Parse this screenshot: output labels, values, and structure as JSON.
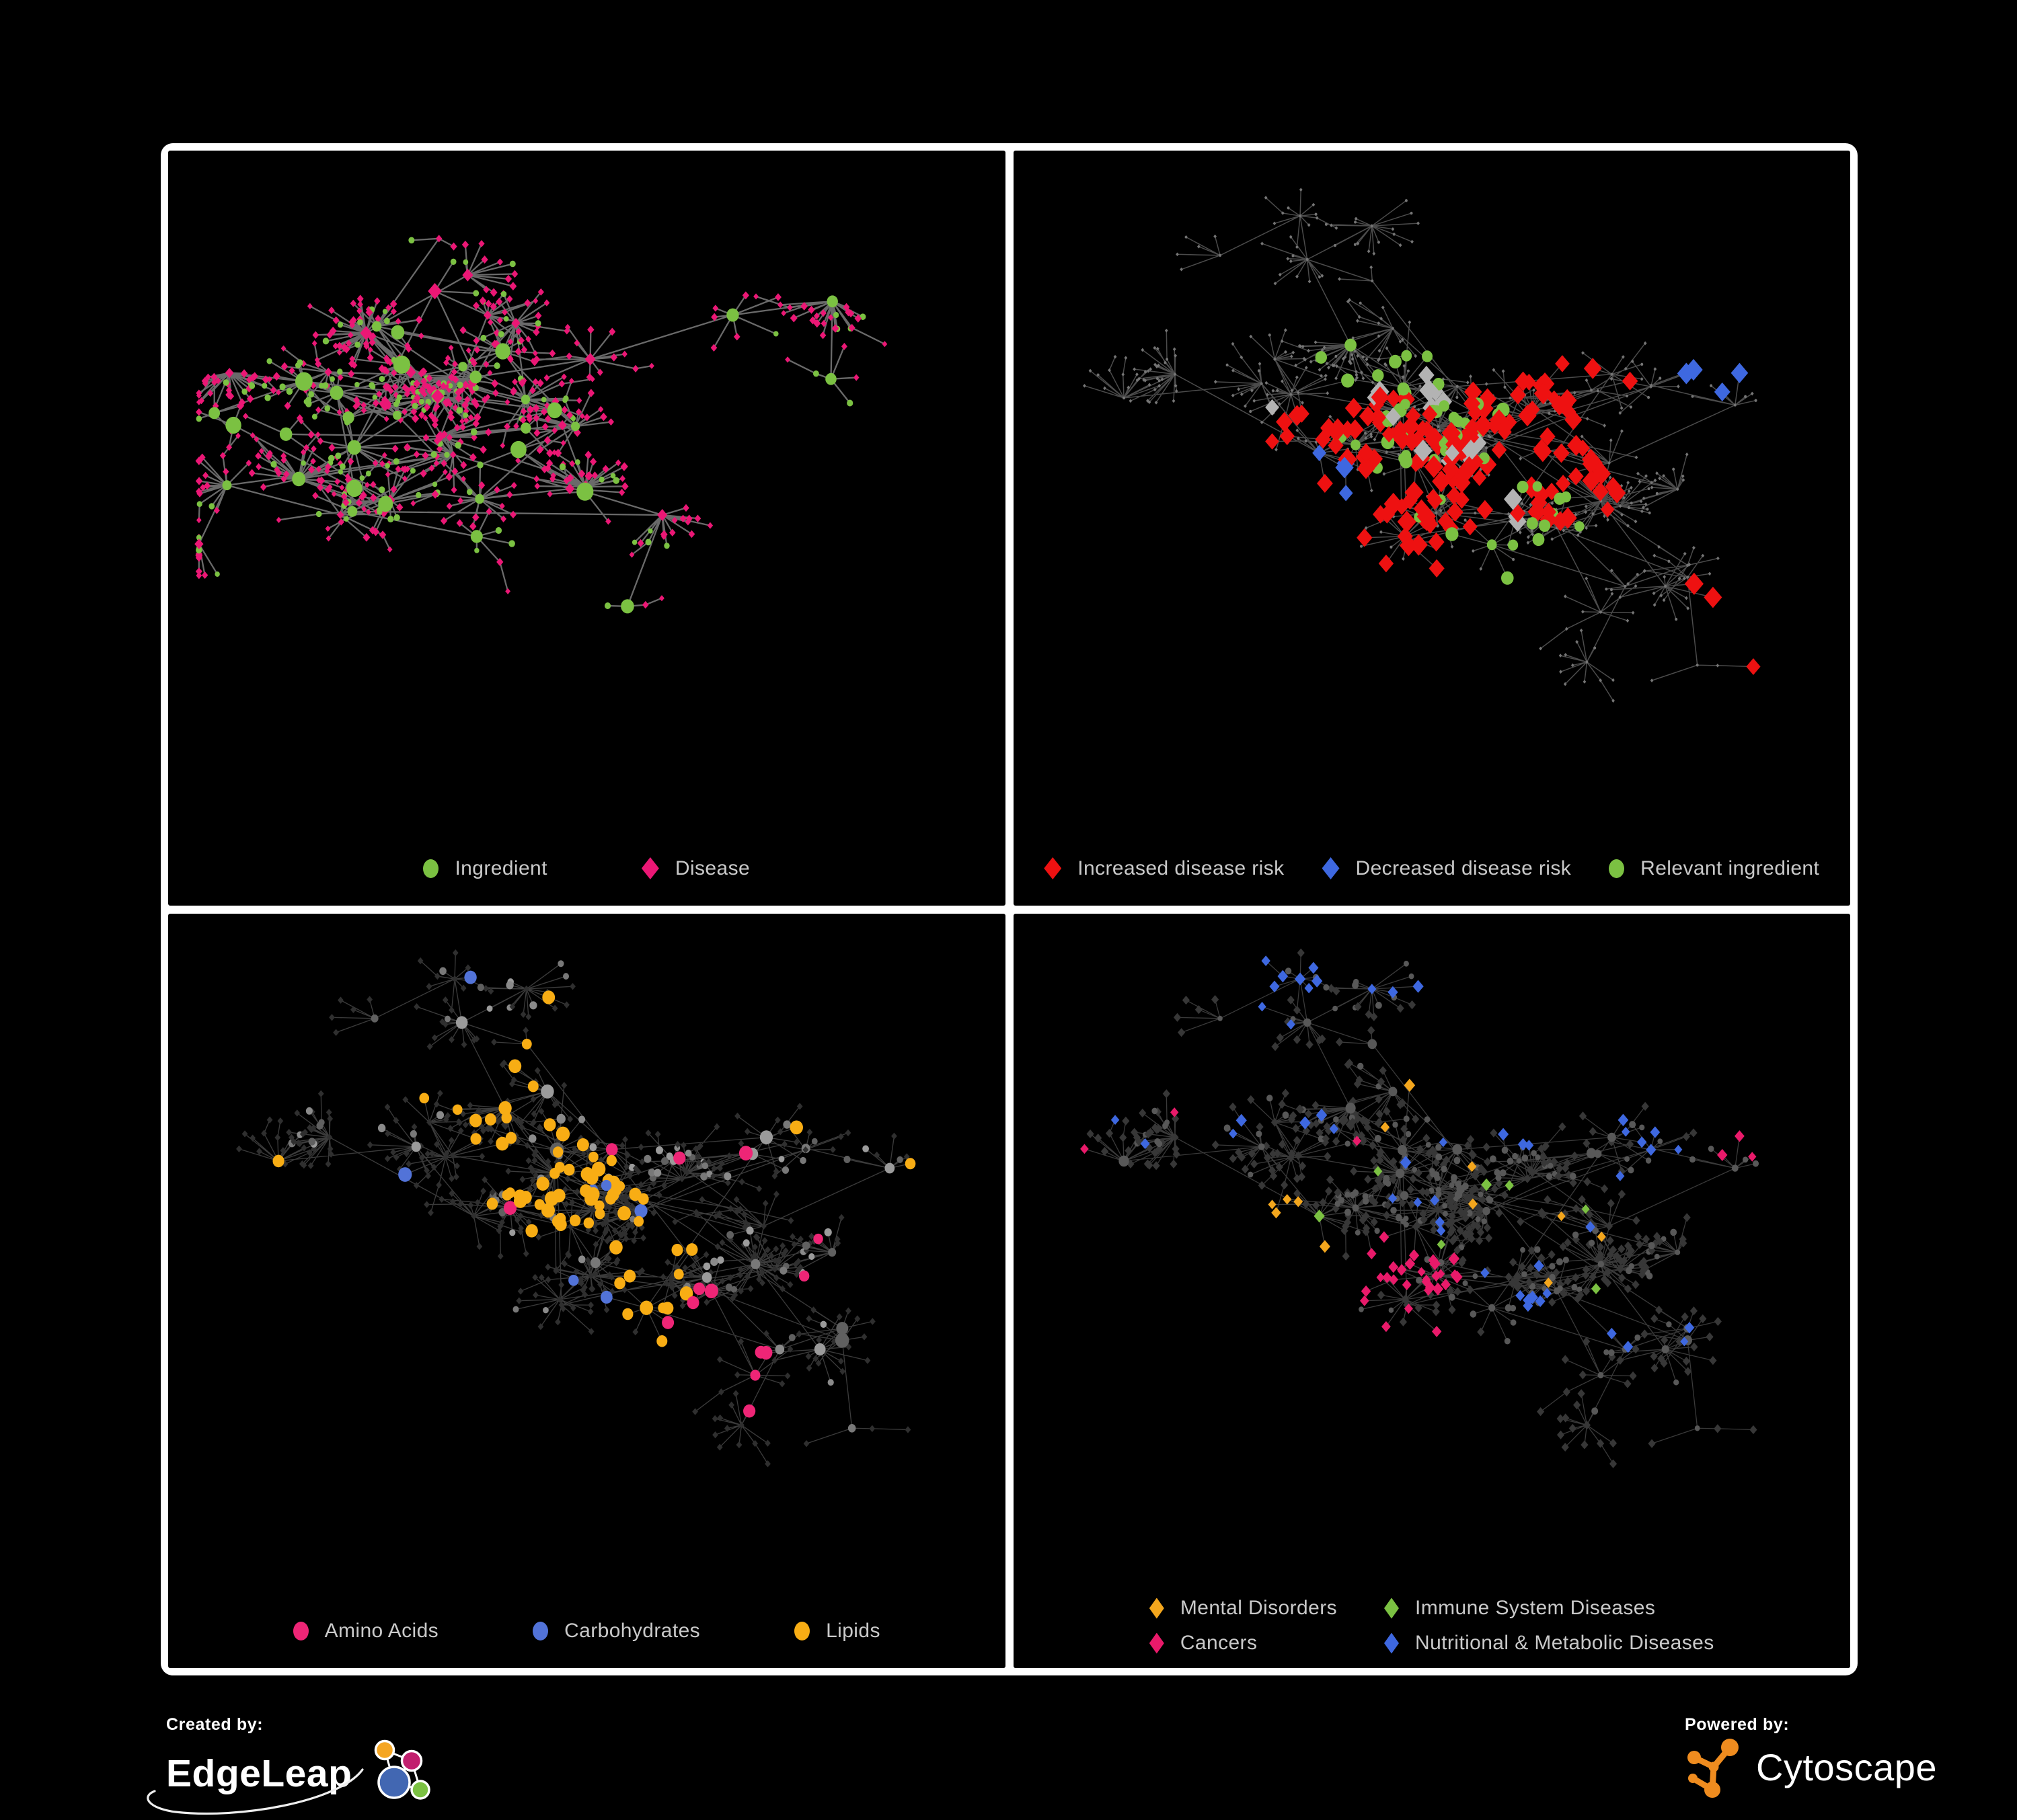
{
  "colors": {
    "background": "#000000",
    "frame": "#ffffff",
    "legend_text": "#c9c9c9",
    "ingredient_green": "#7bc142",
    "disease_pink": "#eb1775",
    "risk_red": "#ee1111",
    "risk_blue": "#3e68e0",
    "neutral_silver": "#b3b3b3",
    "amino_pink": "#ee2576",
    "carb_blue": "#5273d8",
    "lipid_orange": "#f8ad14",
    "mental_orange": "#f3a61d",
    "cancer_pink": "#e91a6a",
    "immune_green": "#7bc142",
    "nutri_blue": "#3e68e0",
    "edgeleap_orange": "#f5a623",
    "edgeleap_magenta": "#c21f6e",
    "edgeleap_blue": "#4267b2",
    "edgeleap_green": "#7bc142",
    "cytoscape_orange": "#ef8c1f"
  },
  "footer": {
    "created_by_label": "Created by:",
    "created_by_name": "EdgeLeap",
    "powered_by_label": "Powered by:",
    "powered_by_name": "Cytoscape"
  },
  "network": {
    "panel1_seed": 11,
    "panel1_hubs": 54,
    "shared_seed": 47,
    "shared_hubs": 58,
    "note_node_kinds": [
      "ingredient (circle)",
      "disease (diamond)"
    ]
  },
  "panels": [
    {
      "key": "ingredient-disease",
      "legend": [
        {
          "label": "Ingredient",
          "shape": "circle",
          "color": "#7bc142"
        },
        {
          "label": "Disease",
          "shape": "diamond",
          "color": "#eb1775"
        }
      ],
      "render": {
        "graph": 0,
        "hl_seed": 1,
        "edge": {
          "color": "#767676",
          "width": 2.3,
          "opacity": 0.9
        },
        "base": {
          "i": {
            "shape": "circle",
            "color": "#7bc142",
            "size": "auto",
            "hub_scale": 1.0,
            "leaf_scale": 1.0
          },
          "d": {
            "shape": "diamond",
            "color": "#eb1775",
            "size": "auto",
            "hub_scale": 0.8,
            "leaf_scale": 1.15
          }
        }
      }
    },
    {
      "key": "disease-risk",
      "legend": [
        {
          "label": "Increased disease risk",
          "shape": "diamond",
          "color": "#ee1111"
        },
        {
          "label": "Decreased disease risk",
          "shape": "diamond",
          "color": "#3e68e0"
        },
        {
          "label": "Relevant ingredient",
          "shape": "circle",
          "color": "#7bc142"
        }
      ],
      "render": {
        "graph": 1,
        "hl_seed": 101,
        "edge": {
          "color": "#585858",
          "width": 1.5,
          "opacity": 0.85
        },
        "base": {
          "i": {
            "shape": "circle",
            "color": "#757575",
            "size": 2.0
          },
          "d": {
            "shape": "diamond",
            "color": "#757575",
            "size": 2.4
          }
        },
        "highlights": [
          {
            "target": "d",
            "shape": "diamond",
            "color": "#ee1111",
            "size": 12,
            "radius": 0.075,
            "p": 0.55,
            "foci": [
              [
                0.45,
                0.44
              ],
              [
                0.54,
                0.5
              ],
              [
                0.61,
                0.41
              ],
              [
                0.49,
                0.6
              ],
              [
                0.37,
                0.46
              ],
              [
                0.66,
                0.52
              ],
              [
                0.92,
                0.82
              ],
              [
                0.85,
                0.75
              ],
              [
                0.7,
                0.3
              ]
            ]
          },
          {
            "target": "d",
            "shape": "diamond",
            "color": "#3e68e0",
            "size": 12,
            "radius": 0.06,
            "p": 0.55,
            "foci": [
              [
                0.36,
                0.5
              ],
              [
                0.33,
                0.57
              ],
              [
                0.84,
                0.34
              ]
            ]
          },
          {
            "target": "d",
            "shape": "diamond",
            "color": "#b3b3b3",
            "size": 12,
            "radius": 0.045,
            "p": 0.4,
            "foci": [
              [
                0.3,
                0.44
              ],
              [
                0.52,
                0.44
              ],
              [
                0.57,
                0.56
              ],
              [
                0.33,
                0.7
              ],
              [
                0.47,
                0.38
              ]
            ]
          },
          {
            "target": "i",
            "shape": "circle",
            "color": "#7bc142",
            "size": 8.5,
            "radius": 0.1,
            "p": 0.4,
            "foci": [
              [
                0.4,
                0.46
              ],
              [
                0.5,
                0.5
              ],
              [
                0.58,
                0.48
              ],
              [
                0.44,
                0.36
              ],
              [
                0.3,
                0.52
              ],
              [
                0.24,
                0.46
              ],
              [
                0.62,
                0.6
              ]
            ]
          }
        ]
      }
    },
    {
      "key": "nutrient-classes",
      "legend": [
        {
          "label": "Amino Acids",
          "shape": "circle",
          "color": "#ee2576"
        },
        {
          "label": "Carbohydrates",
          "shape": "circle",
          "color": "#5273d8"
        },
        {
          "label": "Lipids",
          "shape": "circle",
          "color": "#f8ad14"
        }
      ],
      "render": {
        "graph": 1,
        "hl_seed": 103,
        "edge": {
          "color": "#4a4a4a",
          "width": 1.35,
          "opacity": 0.8
        },
        "base": {
          "i": {
            "shape": "circle",
            "color": "#8d8d8d",
            "color_var": [
              "#9b9b9b",
              "#8a8a8a",
              "#787878",
              "#606060"
            ],
            "size": "auto",
            "hub_scale": 0.9,
            "leaf_scale": 1.2
          },
          "d": {
            "shape": "diamond",
            "color": "#2f2f2f",
            "size": 4.4
          }
        },
        "highlights": [
          {
            "target": "i",
            "shape": "circle",
            "color": "#f8ad14",
            "size": 8.5,
            "radius": 0.07,
            "p": 0.75,
            "foci": [
              [
                0.49,
                0.43
              ],
              [
                0.53,
                0.47
              ],
              [
                0.44,
                0.38
              ],
              [
                0.57,
                0.63
              ],
              [
                0.42,
                0.2
              ],
              [
                0.5,
                0.15
              ],
              [
                0.35,
                0.28
              ],
              [
                0.6,
                0.5
              ]
            ]
          },
          {
            "target": "i",
            "shape": "circle",
            "color": "#5273d8",
            "size": 8.5,
            "radius": 0.05,
            "p": 0.5,
            "foci": [
              [
                0.53,
                0.45
              ],
              [
                0.56,
                0.5
              ],
              [
                0.24,
                0.06
              ]
            ]
          },
          {
            "target": "i",
            "shape": "circle",
            "color": "#ee2576",
            "size": 8.5,
            "radius": 0.06,
            "p": 0.5,
            "foci": [
              [
                0.68,
                0.72
              ],
              [
                0.72,
                0.8
              ],
              [
                0.62,
                0.6
              ]
            ]
          },
          {
            "target": "i",
            "shape": "circle",
            "color": "#f8ad14",
            "size": 8.5,
            "radius": 0.9,
            "p": 0.03,
            "foci": [
              [
                0.5,
                0.5
              ]
            ]
          },
          {
            "target": "i",
            "shape": "circle",
            "color": "#5273d8",
            "size": 8.5,
            "radius": 0.9,
            "p": 0.015,
            "foci": [
              [
                0.5,
                0.5
              ]
            ]
          },
          {
            "target": "i",
            "shape": "circle",
            "color": "#ee2576",
            "size": 8.5,
            "radius": 0.9,
            "p": 0.06,
            "foci": [
              [
                0.5,
                0.5
              ]
            ]
          }
        ]
      }
    },
    {
      "key": "disease-classes",
      "legend": [
        {
          "label": "Mental Disorders",
          "shape": "diamond",
          "color": "#f3a61d"
        },
        {
          "label": "Immune System Diseases",
          "shape": "diamond",
          "color": "#7bc142"
        },
        {
          "label": "Cancers",
          "shape": "diamond",
          "color": "#e91a6a"
        },
        {
          "label": "Nutritional & Metabolic Diseases",
          "shape": "diamond",
          "color": "#3e68e0"
        }
      ],
      "render": {
        "graph": 1,
        "hl_seed": 104,
        "edge": {
          "color": "#525252",
          "width": 1.3,
          "opacity": 0.7
        },
        "base": {
          "i": {
            "shape": "circle",
            "color": "#585858",
            "size": "auto",
            "hub_scale": 0.6,
            "leaf_scale": 1.05
          },
          "d": {
            "shape": "diamond",
            "color": "#373737",
            "size": 5.6
          }
        },
        "highlights": [
          {
            "target": "d",
            "shape": "diamond",
            "color": "#f3a61d",
            "size": 7,
            "radius": 0.1,
            "p": 0.9,
            "foci": [
              [
                0.21,
                0.56
              ],
              [
                0.16,
                0.62
              ],
              [
                0.27,
                0.52
              ],
              [
                0.24,
                0.62
              ]
            ]
          },
          {
            "target": "d",
            "shape": "diamond",
            "color": "#e91a6a",
            "size": 7,
            "radius": 0.065,
            "p": 0.75,
            "foci": [
              [
                0.42,
                0.6
              ],
              [
                0.47,
                0.55
              ],
              [
                0.38,
                0.66
              ],
              [
                0.9,
                0.33
              ],
              [
                0.45,
                0.68
              ]
            ]
          },
          {
            "target": "d",
            "shape": "diamond",
            "color": "#3e68e0",
            "size": 7,
            "radius": 0.06,
            "p": 0.6,
            "foci": [
              [
                0.57,
                0.7
              ],
              [
                0.62,
                0.65
              ],
              [
                0.8,
                0.42
              ],
              [
                0.88,
                0.5
              ],
              [
                0.3,
                0.08
              ],
              [
                0.45,
                0.05
              ],
              [
                0.12,
                0.15
              ],
              [
                0.6,
                0.3
              ],
              [
                0.92,
                0.22
              ],
              [
                0.75,
                0.35
              ]
            ]
          },
          {
            "target": "d",
            "shape": "diamond",
            "color": "#f3a61d",
            "size": 7,
            "radius": 0.9,
            "p": 0.02,
            "foci": [
              [
                0.5,
                0.5
              ]
            ]
          },
          {
            "target": "d",
            "shape": "diamond",
            "color": "#3e68e0",
            "size": 7,
            "radius": 0.9,
            "p": 0.04,
            "foci": [
              [
                0.5,
                0.5
              ]
            ]
          },
          {
            "target": "d",
            "shape": "diamond",
            "color": "#e91a6a",
            "size": 7,
            "radius": 0.9,
            "p": 0.02,
            "foci": [
              [
                0.5,
                0.5
              ]
            ]
          },
          {
            "target": "d",
            "shape": "diamond",
            "color": "#7bc142",
            "size": 7,
            "radius": 0.9,
            "p": 0.02,
            "foci": [
              [
                0.5,
                0.5
              ]
            ]
          }
        ]
      }
    }
  ]
}
